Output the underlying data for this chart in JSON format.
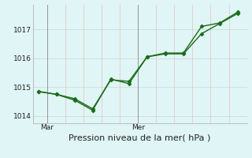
{
  "line1_x": [
    0,
    1,
    2,
    3,
    4,
    5,
    6,
    7,
    8,
    9,
    10,
    11
  ],
  "line1_y": [
    1014.85,
    1014.75,
    1014.6,
    1014.25,
    1015.25,
    1015.2,
    1016.05,
    1016.15,
    1016.15,
    1016.85,
    1017.2,
    1017.55
  ],
  "line2_x": [
    0,
    1,
    2,
    3,
    4,
    5,
    6,
    7,
    8,
    9,
    10,
    11
  ],
  "line2_y": [
    1014.85,
    1014.75,
    1014.55,
    1014.2,
    1015.28,
    1015.12,
    1016.05,
    1016.18,
    1016.18,
    1017.1,
    1017.22,
    1017.6
  ],
  "line_color": "#1a6b1a",
  "bg_color": "#e0f5f5",
  "vline_color": "#888888",
  "red_vgrid_color": "#e8c0c0",
  "gray_hgrid_color": "#c8d8d8",
  "xlabel": "Pression niveau de la mer( hPa )",
  "yticks": [
    1014,
    1015,
    1016,
    1017
  ],
  "ylim": [
    1013.75,
    1017.85
  ],
  "xlim": [
    -0.3,
    11.5
  ],
  "xtick_positions": [
    0.5,
    5.5
  ],
  "xtick_labels": [
    "Mar",
    "Mer"
  ],
  "vline_positions": [
    0.5,
    5.5
  ],
  "red_vgrid_positions": [
    1.5,
    2.5,
    3.5,
    4.5,
    6.5,
    7.5,
    8.5,
    9.5,
    10.5
  ],
  "marker": "D",
  "marker_size": 2.5,
  "line_width": 1.0,
  "xlabel_fontsize": 8,
  "ytick_fontsize": 6.5,
  "xtick_fontsize": 6.5
}
